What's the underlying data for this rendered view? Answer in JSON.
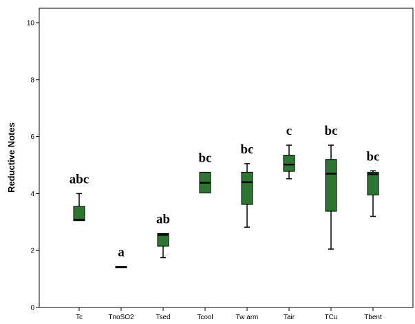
{
  "chart_data": {
    "type": "boxplot",
    "ylabel": "Reductive Notes",
    "ylim": [
      0,
      10.4
    ],
    "yticks": [
      0,
      2,
      4,
      6,
      8,
      10
    ],
    "box_color": "#2e7533",
    "categories": [
      "Tc",
      "TnoSO2",
      "Tsed",
      "Tcool",
      "Tw arm",
      "Tair",
      "TCu",
      "Tbent"
    ],
    "boxes": [
      {
        "category": "Tc",
        "min": 3.05,
        "q1": 3.05,
        "median": 3.08,
        "q3": 3.55,
        "max": 4.0,
        "label": "abc"
      },
      {
        "category": "TnoSO2",
        "min": 1.4,
        "q1": 1.4,
        "median": 1.42,
        "q3": 1.44,
        "max": 1.44,
        "label": "a"
      },
      {
        "category": "Tsed",
        "min": 1.75,
        "q1": 2.15,
        "median": 2.55,
        "q3": 2.6,
        "max": 2.6,
        "label": "ab"
      },
      {
        "category": "Tcool",
        "min": 4.02,
        "q1": 4.02,
        "median": 4.38,
        "q3": 4.75,
        "max": 4.75,
        "label": "bc"
      },
      {
        "category": "Tw arm",
        "min": 2.82,
        "q1": 3.62,
        "median": 4.4,
        "q3": 4.75,
        "max": 5.05,
        "label": "bc"
      },
      {
        "category": "Tair",
        "min": 4.52,
        "q1": 4.78,
        "median": 5.02,
        "q3": 5.35,
        "max": 5.7,
        "label": "c"
      },
      {
        "category": "TCu",
        "min": 2.05,
        "q1": 3.38,
        "median": 4.7,
        "q3": 5.2,
        "max": 5.7,
        "label": "bc"
      },
      {
        "category": "Tbent",
        "min": 3.2,
        "q1": 3.95,
        "median": 4.68,
        "q3": 4.75,
        "max": 4.8,
        "label": "bc"
      }
    ]
  }
}
